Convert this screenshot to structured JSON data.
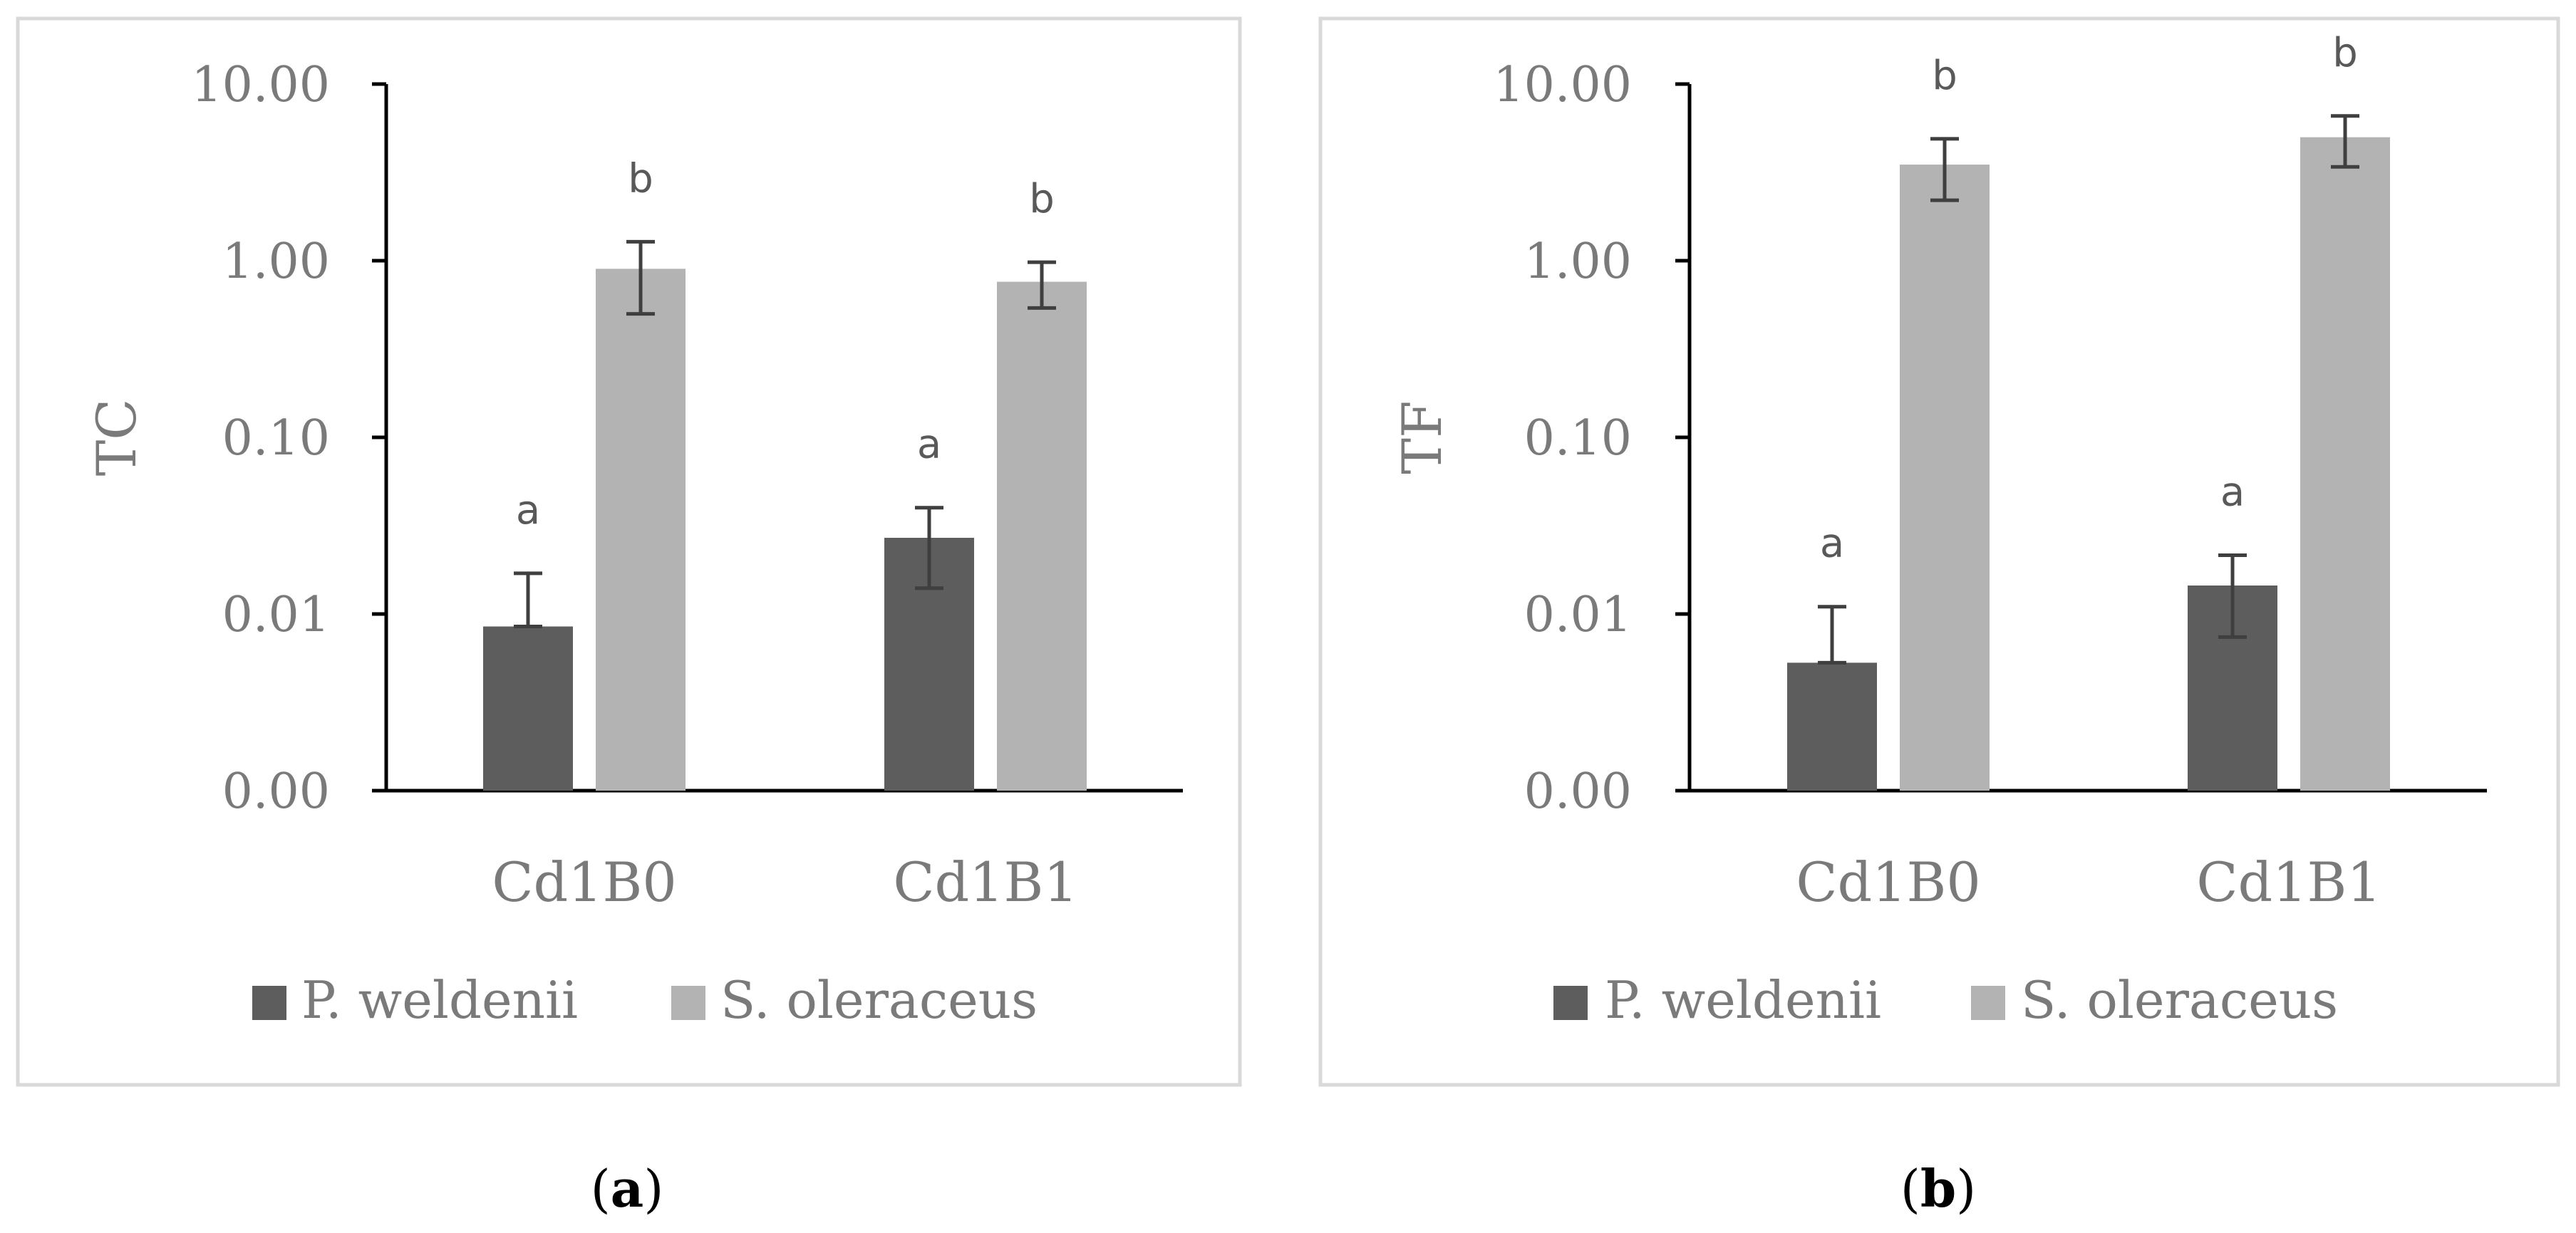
{
  "figure": {
    "panel_labels": [
      "a",
      "b"
    ]
  },
  "colors": {
    "series_dark": "#5d5d5d",
    "series_light": "#b3b3b3",
    "axis": "#000000",
    "text": "#7a7a7a",
    "letters": "#595959",
    "panel_border": "#d9d9d9",
    "error_bar": "#3f3f3f"
  },
  "chart_data": [
    {
      "type": "bar",
      "panel": "a",
      "ylabel": "TC",
      "xlabel": "",
      "yscale": "log",
      "ylim": [
        0.001,
        10
      ],
      "y_ticks": [
        0.001,
        0.01,
        0.1,
        1,
        10
      ],
      "y_tick_labels": [
        "0.00",
        "0.01",
        "0.10",
        "1.00",
        "10.00"
      ],
      "categories": [
        "Cd1B0",
        "Cd1B1"
      ],
      "legend_position": "bottom",
      "series": [
        {
          "name": "P. weldenii",
          "color_key": "series_dark",
          "values": [
            0.0085,
            0.027
          ],
          "error_high": [
            0.017,
            0.04
          ],
          "error_low": [
            0.0085,
            0.014
          ],
          "letters": [
            "a",
            "a"
          ]
        },
        {
          "name": "S. oleraceus",
          "color_key": "series_light",
          "values": [
            0.9,
            0.76
          ],
          "error_high": [
            1.28,
            0.98
          ],
          "error_low": [
            0.5,
            0.54
          ],
          "letters": [
            "b",
            "b"
          ]
        }
      ]
    },
    {
      "type": "bar",
      "panel": "b",
      "ylabel": "TF",
      "xlabel": "",
      "yscale": "log",
      "ylim": [
        0.001,
        10
      ],
      "y_ticks": [
        0.001,
        0.01,
        0.1,
        1,
        10
      ],
      "y_tick_labels": [
        "0.00",
        "0.01",
        "0.10",
        "1.00",
        "10.00"
      ],
      "categories": [
        "Cd1B0",
        "Cd1B1"
      ],
      "legend_position": "bottom",
      "series": [
        {
          "name": "P. weldenii",
          "color_key": "series_dark",
          "values": [
            0.0053,
            0.0145
          ],
          "error_high": [
            0.011,
            0.0215
          ],
          "error_low": [
            0.0053,
            0.0074
          ],
          "letters": [
            "a",
            "a"
          ]
        },
        {
          "name": "S. oleraceus",
          "color_key": "series_light",
          "values": [
            3.5,
            5.0
          ],
          "error_high": [
            4.9,
            6.6
          ],
          "error_low": [
            2.2,
            3.4
          ],
          "letters": [
            "b",
            "b"
          ]
        }
      ]
    }
  ]
}
